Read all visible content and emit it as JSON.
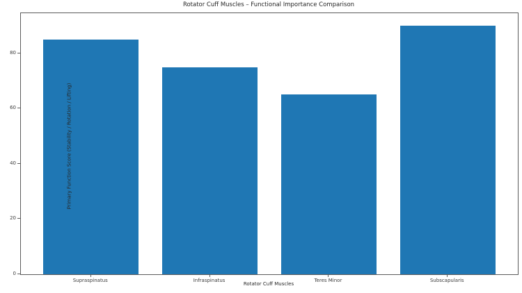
{
  "chart_data": {
    "type": "bar",
    "title": "Rotator Cuff Muscles – Functional Importance Comparison",
    "xlabel": "Rotator Cuff Muscles",
    "ylabel": "Primary Function Score (Stability / Rotation / Lifting)",
    "categories": [
      "Supraspinatus",
      "Infraspinatus",
      "Teres Minor",
      "Subscapularis"
    ],
    "values": [
      85,
      75,
      65,
      90
    ],
    "yticks": [
      0,
      20,
      40,
      60,
      80
    ],
    "ylim": [
      0,
      94.5
    ],
    "bar_width_fraction": 0.8,
    "x_edge_margin": 0.59,
    "bar_color": "#1f77b4",
    "grid": false,
    "legend": null,
    "background_color": "#ffffff"
  }
}
